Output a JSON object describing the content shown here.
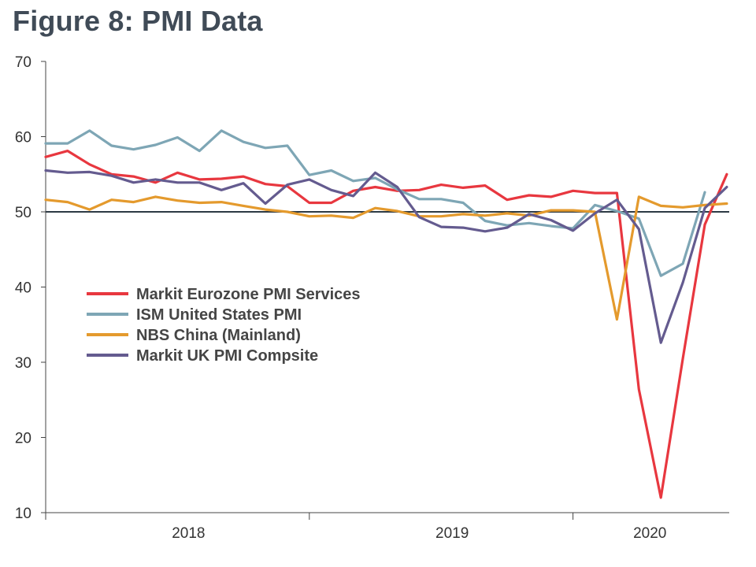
{
  "chart_data": {
    "type": "line",
    "title": "Figure 8: PMI Data",
    "xlabel": "",
    "ylabel": "",
    "ylim": [
      10,
      70
    ],
    "yticks": [
      10,
      20,
      30,
      40,
      50,
      60,
      70
    ],
    "reference_line": 50,
    "xlim": [
      0,
      31
    ],
    "year_ticks": [
      {
        "label": "2018",
        "x": 6.5
      },
      {
        "label": "2019",
        "x": 18.5
      },
      {
        "label": "2020",
        "x": 27.5
      }
    ],
    "year_boundaries": [
      0,
      12,
      24
    ],
    "legend_position": "center-left",
    "series": [
      {
        "name": "Markit Eurozone PMI Services",
        "color": "#e8373f",
        "values": [
          57.3,
          58.1,
          56.3,
          55.0,
          54.7,
          53.9,
          55.2,
          54.3,
          54.4,
          54.7,
          53.7,
          53.4,
          51.2,
          51.2,
          52.8,
          53.3,
          52.8,
          52.9,
          53.6,
          53.2,
          53.5,
          51.6,
          52.2,
          52.0,
          52.8,
          52.5,
          52.5,
          26.4,
          12.0,
          30.5,
          48.3,
          55.0
        ]
      },
      {
        "name": "ISM United States PMI",
        "color": "#7ea6b5",
        "values": [
          59.1,
          59.1,
          60.8,
          58.8,
          58.3,
          58.9,
          59.9,
          58.1,
          60.8,
          59.3,
          58.5,
          58.8,
          54.9,
          55.5,
          54.1,
          54.5,
          53.0,
          51.7,
          51.7,
          51.2,
          48.8,
          48.2,
          48.5,
          48.1,
          47.8,
          50.9,
          50.1,
          49.1,
          41.5,
          43.1,
          52.6,
          null
        ]
      },
      {
        "name": "NBS China (Mainland)",
        "color": "#e49a2d",
        "values": [
          51.6,
          51.3,
          50.3,
          51.6,
          51.3,
          52.0,
          51.5,
          51.2,
          51.3,
          50.8,
          50.3,
          50.0,
          49.4,
          49.5,
          49.2,
          50.5,
          50.1,
          49.4,
          49.4,
          49.7,
          49.5,
          49.8,
          49.5,
          50.2,
          50.2,
          50.0,
          35.7,
          52.0,
          50.8,
          50.6,
          50.9,
          51.1
        ]
      },
      {
        "name": "Markit UK PMI Compsite",
        "color": "#645b8f",
        "values": [
          55.5,
          55.2,
          55.3,
          54.8,
          53.9,
          54.3,
          53.9,
          53.9,
          52.9,
          53.8,
          51.1,
          53.6,
          54.3,
          52.9,
          52.1,
          55.2,
          53.3,
          49.3,
          48.0,
          47.9,
          47.4,
          47.9,
          49.7,
          48.9,
          47.5,
          49.8,
          51.6,
          47.7,
          32.6,
          40.6,
          50.5,
          53.3
        ]
      }
    ]
  }
}
